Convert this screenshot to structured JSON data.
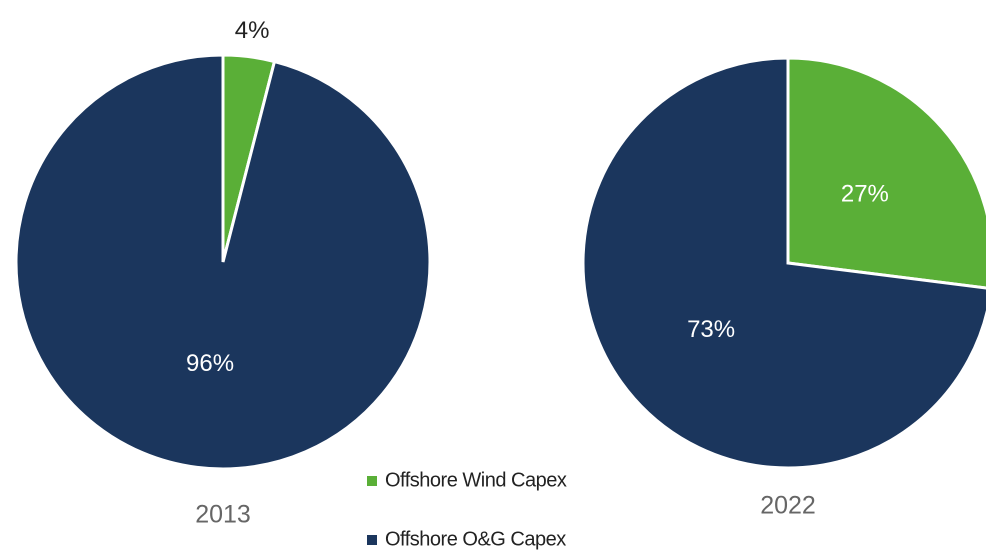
{
  "chart_data": [
    {
      "type": "pie",
      "title": "2013",
      "categories": [
        "Offshore Wind Capex",
        "Offshore O&G Capex"
      ],
      "colors": [
        "#5aaf37",
        "#1b365d"
      ],
      "values": [
        4,
        96
      ],
      "value_labels": [
        "4%",
        "96%"
      ]
    },
    {
      "type": "pie",
      "title": "2022",
      "values": [
        27,
        73
      ],
      "value_labels": [
        "27%",
        "73%"
      ]
    }
  ]
}
